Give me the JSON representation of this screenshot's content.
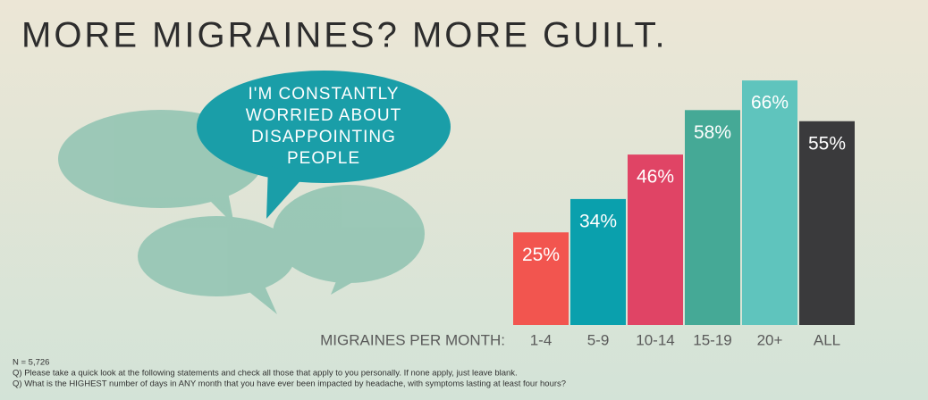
{
  "chart_data": {
    "type": "bar",
    "title": "MORE MIGRAINES? MORE GUILT.",
    "bubble_lines": [
      "I'M CONSTANTLY",
      "WORRIED ABOUT",
      "DISAPPOINTING",
      "PEOPLE"
    ],
    "x_label": "MIGRAINES PER MONTH:",
    "categories": [
      "1-4",
      "5-9",
      "10-14",
      "15-19",
      "20+",
      "ALL"
    ],
    "values": [
      25,
      34,
      46,
      58,
      66,
      55
    ],
    "value_labels": [
      "25%",
      "34%",
      "46%",
      "58%",
      "66%",
      "55%"
    ],
    "colors": [
      "#f2554f",
      "#0aa0ad",
      "#e04465",
      "#45a996",
      "#5fc4bd",
      "#3a3a3c"
    ],
    "footnotes": [
      "N = 5,726",
      "Q) Please take a quick look at the following statements and check all those that apply to you personally. If none apply, just leave blank.",
      "Q) What is the HIGHEST number of days in ANY month that you have ever been impacted by headache, with symptoms lasting at least four hours?"
    ]
  }
}
